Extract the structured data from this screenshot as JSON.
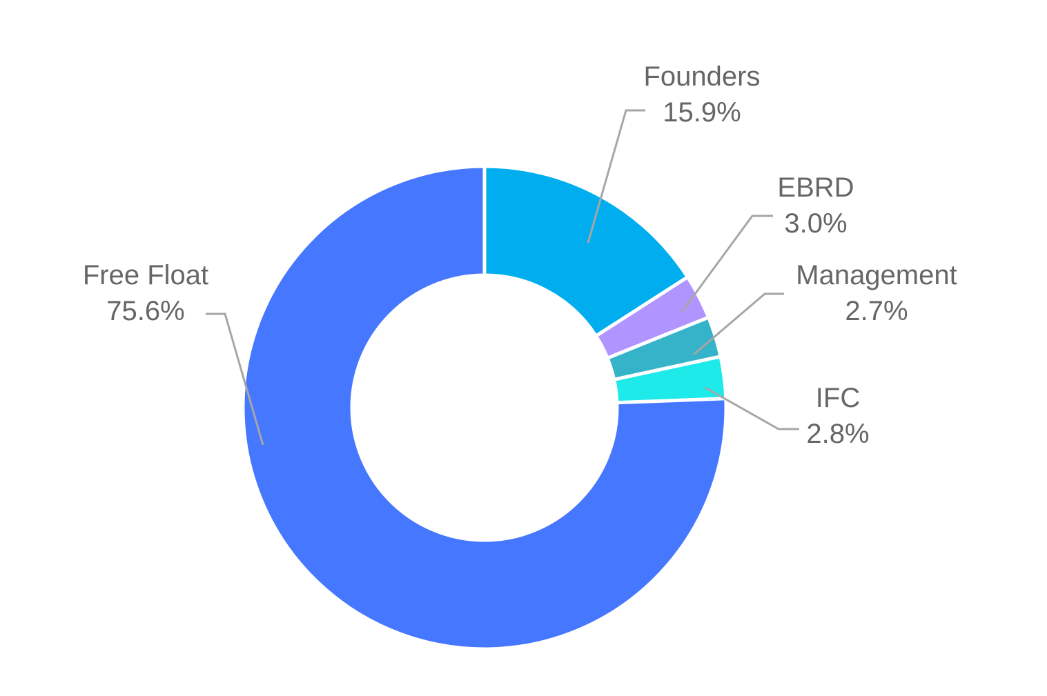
{
  "chart_data": {
    "type": "pie",
    "variant": "donut",
    "title": "",
    "start_angle_deg": 0,
    "direction": "clockwise",
    "slices": [
      {
        "key": "founders",
        "label": "Founders",
        "value": 15.9,
        "value_label": "15.9%",
        "color": "#00aeef"
      },
      {
        "key": "ebrd",
        "label": "EBRD",
        "value": 3.0,
        "value_label": "3.0%",
        "color": "#b094ff"
      },
      {
        "key": "management",
        "label": "Management",
        "value": 2.7,
        "value_label": "2.7%",
        "color": "#35b3c8"
      },
      {
        "key": "ifc",
        "label": "IFC",
        "value": 2.8,
        "value_label": "2.8%",
        "color": "#1eeaea"
      },
      {
        "key": "free-float",
        "label": "Free Float",
        "value": 75.6,
        "value_label": "75.6%",
        "color": "#4577ff"
      }
    ],
    "legend": "none",
    "label_color": "#666666",
    "leader_color": "#a6a6a6"
  }
}
